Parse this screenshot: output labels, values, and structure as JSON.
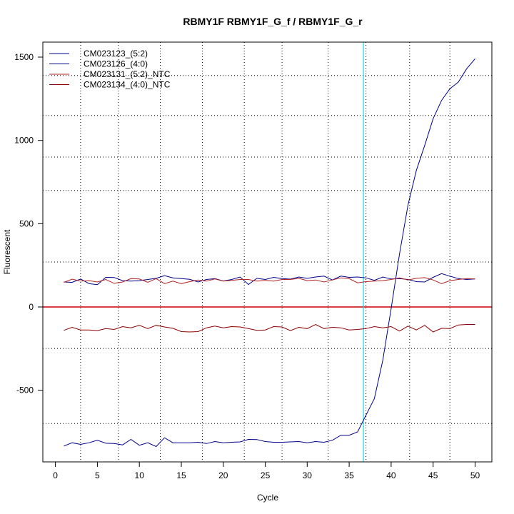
{
  "chart_data": {
    "type": "line",
    "title": "RBMY1F  RBMY1F_G_f / RBMY1F_G_r",
    "xlabel": "Cycle",
    "ylabel": "Fluorescent",
    "xlim": [
      -1.5,
      52
    ],
    "ylim": [
      -930,
      1590
    ],
    "x_ticks": [
      0,
      5,
      10,
      15,
      20,
      25,
      30,
      35,
      40,
      45,
      50
    ],
    "y_ticks": [
      -500,
      0,
      500,
      1000,
      1500
    ],
    "grid": true,
    "grid_x": [
      3,
      7.5,
      12.5,
      17.5,
      22.5,
      27,
      32.5,
      37,
      42.2,
      47
    ],
    "grid_y": [
      -700,
      -250,
      270,
      700,
      900,
      1150,
      1390
    ],
    "threshold_x": 36.7,
    "threshold_color": "#00e5ee",
    "baseline_y": 0,
    "baseline_color": "#cc0000",
    "legend_position": "top-left",
    "x": [
      1,
      2,
      3,
      4,
      5,
      6,
      7,
      8,
      9,
      10,
      11,
      12,
      13,
      14,
      15,
      16,
      17,
      18,
      19,
      20,
      21,
      22,
      23,
      24,
      25,
      26,
      27,
      28,
      29,
      30,
      31,
      32,
      33,
      34,
      35,
      36,
      37,
      38,
      39,
      40,
      41,
      42,
      43,
      44,
      45,
      46,
      47,
      48,
      49,
      50
    ],
    "series": [
      {
        "name": "CM023123_(5:2)",
        "color": "#00008b",
        "values": [
          -835,
          -815,
          -825,
          -815,
          -800,
          -818,
          -820,
          -828,
          -795,
          -830,
          -815,
          -838,
          -785,
          -815,
          -815,
          -815,
          -812,
          -820,
          -808,
          -815,
          -812,
          -810,
          -795,
          -796,
          -808,
          -812,
          -812,
          -810,
          -808,
          -815,
          -808,
          -812,
          -800,
          -770,
          -770,
          -750,
          -650,
          -550,
          -320,
          -10,
          320,
          610,
          820,
          970,
          1130,
          1240,
          1310,
          1350,
          1430,
          1490
        ]
      },
      {
        "name": "CM023126_(4:0)",
        "color": "#00008b",
        "values": [
          150,
          148,
          168,
          140,
          134,
          178,
          177,
          158,
          155,
          158,
          165,
          172,
          188,
          175,
          170,
          166,
          150,
          165,
          170,
          156,
          165,
          180,
          135,
          172,
          165,
          178,
          170,
          167,
          180,
          172,
          180,
          185,
          162,
          185,
          178,
          180,
          175,
          160,
          180,
          168,
          170,
          165,
          152,
          150,
          178,
          200,
          185,
          170,
          165,
          168
        ]
      },
      {
        "name": "CM023131_(5:2)_NTC",
        "color": "#b22222",
        "values": [
          148,
          167,
          155,
          158,
          150,
          165,
          142,
          150,
          170,
          168,
          148,
          170,
          140,
          155,
          140,
          152,
          162,
          155,
          168,
          155,
          160,
          165,
          165,
          155,
          160,
          155,
          165,
          165,
          172,
          158,
          162,
          150,
          162,
          175,
          170,
          145,
          152,
          155,
          158,
          165,
          175,
          162,
          172,
          176,
          162,
          140,
          158,
          165,
          170,
          168
        ]
      },
      {
        "name": "CM023134_(4:0)_NTC",
        "color": "#8b0000",
        "values": [
          -140,
          -122,
          -138,
          -138,
          -142,
          -130,
          -135,
          -118,
          -125,
          -110,
          -130,
          -110,
          -120,
          -128,
          -148,
          -150,
          -148,
          -125,
          -115,
          -125,
          -118,
          -120,
          -130,
          -140,
          -138,
          -118,
          -120,
          -142,
          -122,
          -130,
          -105,
          -130,
          -122,
          -125,
          -138,
          -135,
          -130,
          -118,
          -125,
          -118,
          -145,
          -115,
          -138,
          -110,
          -150,
          -128,
          -130,
          -108,
          -105,
          -105
        ]
      }
    ]
  }
}
